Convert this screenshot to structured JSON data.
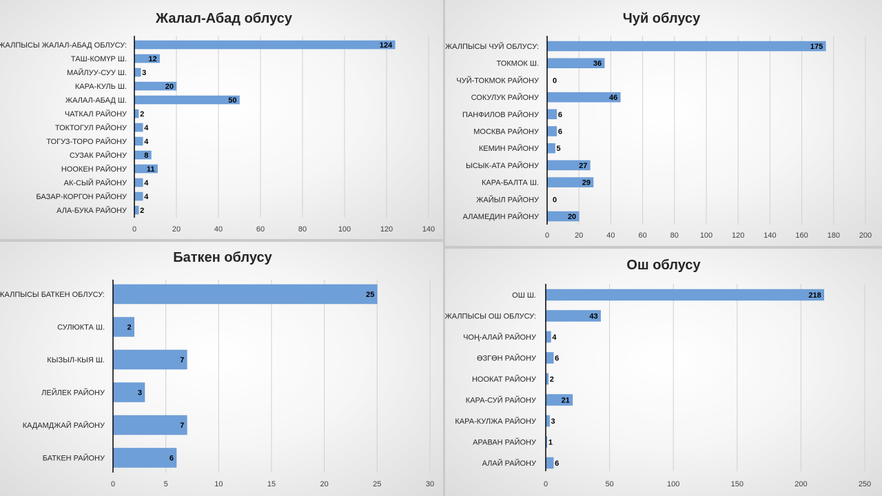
{
  "chart_data": [
    {
      "type": "bar",
      "orientation": "horizontal",
      "title": "Жалал-Абад облусу",
      "categories": [
        "ЖАЛПЫСЫ ЖАЛАЛ-АБАД ОБЛУСУ:",
        "ТАШ-КОМҮР Ш.",
        "МАЙЛУУ-СУУ Ш.",
        "КАРА-КУЛЬ Ш.",
        "ЖАЛАЛ-АБАД Ш.",
        "ЧАТКАЛ РАЙОНУ",
        "ТОКТОГУЛ РАЙОНУ",
        "ТОГУЗ-ТОРО РАЙОНУ",
        "СУЗАК РАЙОНУ",
        "НООКЕН РАЙОНУ",
        "АК-СЫЙ РАЙОНУ",
        "БАЗАР-КОРГОН РАЙОНУ",
        "АЛА-БУКА РАЙОНУ"
      ],
      "values": [
        124,
        12,
        3,
        20,
        50,
        2,
        4,
        4,
        8,
        11,
        4,
        4,
        2
      ],
      "xlim": [
        0,
        140
      ],
      "ticks": [
        0,
        20,
        40,
        60,
        80,
        100,
        120,
        140
      ],
      "grid": true,
      "data_labels": true
    },
    {
      "type": "bar",
      "orientation": "horizontal",
      "title": "Чуй облусу",
      "categories": [
        "ЖАЛПЫСЫ ЧУЙ ОБЛУСУ:",
        "ТОКМОК Ш.",
        "ЧУЙ-ТОКМОК РАЙОНУ",
        "СОКУЛУК РАЙОНУ",
        "ПАНФИЛОВ РАЙОНУ",
        "МОСКВА РАЙОНУ",
        "КЕМИН РАЙОНУ",
        "ЫСЫК-АТА РАЙОНУ",
        "КАРА-БАЛТА Ш.",
        "ЖАЙЫЛ РАЙОНУ",
        "АЛАМЕДИН РАЙОНУ"
      ],
      "values": [
        175,
        36,
        0,
        46,
        6,
        6,
        5,
        27,
        29,
        0,
        20
      ],
      "xlim": [
        0,
        200
      ],
      "ticks": [
        0,
        20,
        40,
        60,
        80,
        100,
        120,
        140,
        160,
        180,
        200
      ],
      "grid": true,
      "data_labels": true
    },
    {
      "type": "bar",
      "orientation": "horizontal",
      "title": "Баткен облусу",
      "categories": [
        "ЖАЛПЫСЫ БАТКЕН ОБЛУСУ:",
        "СУЛЮКТА Ш.",
        "КЫЗЫЛ-КЫЯ Ш.",
        "ЛЕЙЛЕК РАЙОНУ",
        "КАДАМДЖАЙ РАЙОНУ",
        "БАТКЕН РАЙОНУ"
      ],
      "values": [
        25,
        2,
        7,
        3,
        7,
        6
      ],
      "xlim": [
        0,
        30
      ],
      "ticks": [
        0,
        5,
        10,
        15,
        20,
        25,
        30
      ],
      "grid": true,
      "data_labels": true
    },
    {
      "type": "bar",
      "orientation": "horizontal",
      "title": "Ош облусу",
      "categories": [
        "ОШ Ш.",
        "ЖАЛПЫСЫ ОШ ОБЛУСУ:",
        "ЧОҢ-АЛАЙ РАЙОНУ",
        "ӨЗГӨН РАЙОНУ",
        "НООКАТ РАЙОНУ",
        "КАРА-СУЙ РАЙОНУ",
        "КАРА-КУЛЖА РАЙОНУ",
        "АРАВАН РАЙОНУ",
        "АЛАЙ РАЙОНУ"
      ],
      "values": [
        218,
        43,
        4,
        6,
        2,
        21,
        3,
        1,
        6
      ],
      "xlim": [
        0,
        250
      ],
      "ticks": [
        0,
        50,
        100,
        150,
        200,
        250
      ],
      "grid": true,
      "data_labels": true
    }
  ],
  "colors": {
    "bar": "#6f9fd8",
    "grid": "#d0d0d0",
    "axis": "#000000",
    "text": "#262626"
  }
}
